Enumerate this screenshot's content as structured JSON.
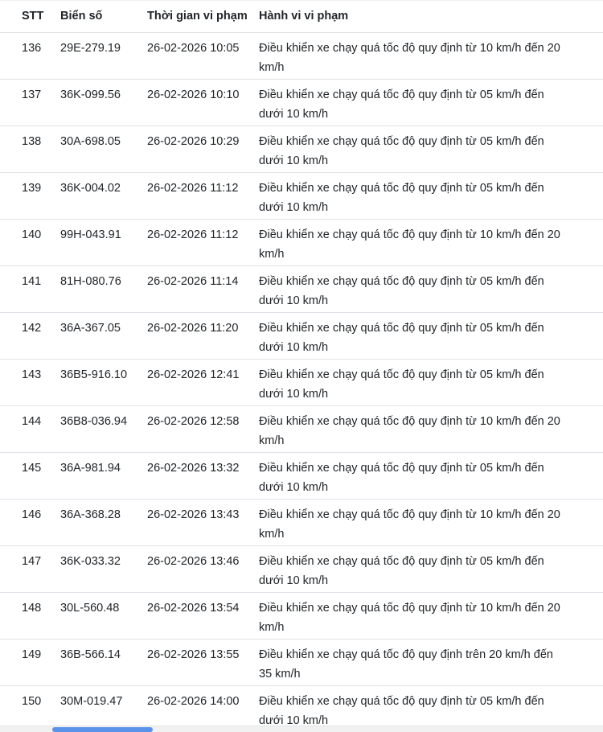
{
  "page": {
    "background_color": "#ffffff",
    "text_color": "#212529",
    "row_border_color": "#dee2e6"
  },
  "table": {
    "headers": [
      "STT",
      "Biển số",
      "Thời gian vi phạm",
      "Hành vi vi phạm"
    ],
    "rows": [
      {
        "stt": "136",
        "plate": "29E-279.19",
        "time": "26-02-2026 10:05",
        "behavior": "Điều khiển xe chạy quá tốc độ quy định từ 10 km/h đến 20 km/h"
      },
      {
        "stt": "137",
        "plate": "36K-099.56",
        "time": "26-02-2026 10:10",
        "behavior": "Điều khiển xe chạy quá tốc độ quy định từ 05 km/h đến dưới 10 km/h"
      },
      {
        "stt": "138",
        "plate": "30A-698.05",
        "time": "26-02-2026 10:29",
        "behavior": "Điều khiển xe chạy quá tốc độ quy định từ 05 km/h đến dưới 10 km/h"
      },
      {
        "stt": "139",
        "plate": "36K-004.02",
        "time": "26-02-2026 11:12",
        "behavior": "Điều khiển xe chạy quá tốc độ quy định từ 05 km/h đến dưới 10 km/h"
      },
      {
        "stt": "140",
        "plate": "99H-043.91",
        "time": "26-02-2026 11:12",
        "behavior": "Điều khiển xe chạy quá tốc độ quy định từ 10 km/h đến 20 km/h"
      },
      {
        "stt": "141",
        "plate": "81H-080.76",
        "time": "26-02-2026 11:14",
        "behavior": "Điều khiển xe chạy quá tốc độ quy định từ 05 km/h đến dưới 10 km/h"
      },
      {
        "stt": "142",
        "plate": "36A-367.05",
        "time": "26-02-2026 11:20",
        "behavior": "Điều khiển xe chạy quá tốc độ quy định từ 05 km/h đến dưới 10 km/h"
      },
      {
        "stt": "143",
        "plate": "36B5-916.10",
        "time": "26-02-2026 12:41",
        "behavior": "Điều khiển xe chạy quá tốc độ quy định từ 05 km/h đến dưới 10 km/h"
      },
      {
        "stt": "144",
        "plate": "36B8-036.94",
        "time": "26-02-2026 12:58",
        "behavior": "Điều khiển xe chạy quá tốc độ quy định từ 10 km/h đến 20 km/h"
      },
      {
        "stt": "145",
        "plate": "36A-981.94",
        "time": "26-02-2026 13:32",
        "behavior": "Điều khiển xe chạy quá tốc độ quy định từ 05 km/h đến dưới 10 km/h"
      },
      {
        "stt": "146",
        "plate": "36A-368.28",
        "time": "26-02-2026 13:43",
        "behavior": "Điều khiển xe chạy quá tốc độ quy định từ 10 km/h đến 20 km/h"
      },
      {
        "stt": "147",
        "plate": "36K-033.32",
        "time": "26-02-2026 13:46",
        "behavior": "Điều khiển xe chạy quá tốc độ quy định từ 05 km/h đến dưới 10 km/h"
      },
      {
        "stt": "148",
        "plate": "30L-560.48",
        "time": "26-02-2026 13:54",
        "behavior": "Điều khiển xe chạy quá tốc độ quy định từ 10 km/h đến 20 km/h"
      },
      {
        "stt": "149",
        "plate": "36B-566.14",
        "time": "26-02-2026 13:55",
        "behavior": "Điều khiển xe chạy quá tốc độ quy định trên 20 km/h đến 35 km/h"
      },
      {
        "stt": "150",
        "plate": "30M-019.47",
        "time": "26-02-2026 14:00",
        "behavior": "Điều khiển xe chạy quá tốc độ quy định từ 05 km/h đến dưới 10 km/h"
      }
    ]
  },
  "scrollbar": {
    "track_color": "#f1f1f1",
    "thumb_color": "#5b93eb"
  }
}
